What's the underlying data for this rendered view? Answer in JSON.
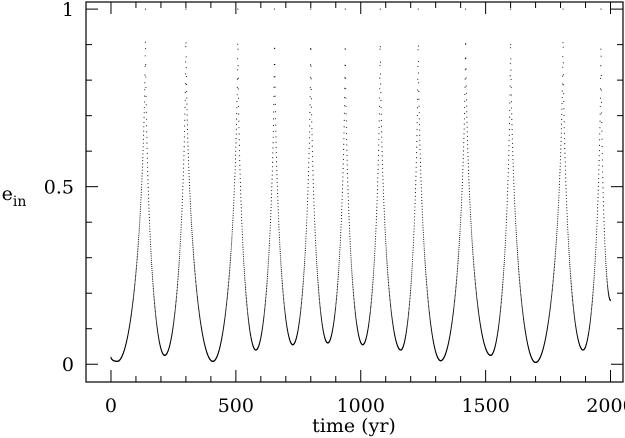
{
  "chart_data": {
    "type": "scatter",
    "title": "",
    "xlabel": "time (yr)",
    "ylabel_main": "e",
    "ylabel_sub": "in",
    "xlim": [
      -100,
      2050
    ],
    "ylim": [
      -0.05,
      1.02
    ],
    "x_major_ticks": [
      0,
      500,
      1000,
      1500,
      2000
    ],
    "x_minor_step": 100,
    "x_tick_labels": [
      "0",
      "500",
      "1000",
      "1500",
      "2000"
    ],
    "y_major_ticks": [
      0,
      0.5,
      1
    ],
    "y_minor_step": 0.1,
    "y_tick_labels": [
      "0",
      "0.5",
      "1"
    ],
    "grid": false,
    "legend": false,
    "series": [
      {
        "start": {
          "t": 0,
          "e": 0.02
        },
        "cycles": [
          {
            "t_min": 25,
            "e_min": 0.008,
            "t_peak": 138,
            "e_peak": 1.0
          },
          {
            "t_min": 215,
            "e_min": 0.025,
            "t_peak": 300,
            "e_peak": 1.0
          },
          {
            "t_min": 408,
            "e_min": 0.008,
            "t_peak": 508,
            "e_peak": 1.0
          },
          {
            "t_min": 580,
            "e_min": 0.04,
            "t_peak": 655,
            "e_peak": 1.0
          },
          {
            "t_min": 728,
            "e_min": 0.055,
            "t_peak": 800,
            "e_peak": 1.0
          },
          {
            "t_min": 868,
            "e_min": 0.06,
            "t_peak": 938,
            "e_peak": 1.0
          },
          {
            "t_min": 1008,
            "e_min": 0.055,
            "t_peak": 1078,
            "e_peak": 1.0
          },
          {
            "t_min": 1160,
            "e_min": 0.04,
            "t_peak": 1230,
            "e_peak": 1.0
          },
          {
            "t_min": 1320,
            "e_min": 0.01,
            "t_peak": 1420,
            "e_peak": 1.0
          },
          {
            "t_min": 1520,
            "e_min": 0.025,
            "t_peak": 1600,
            "e_peak": 1.0
          },
          {
            "t_min": 1700,
            "e_min": 0.005,
            "t_peak": 1810,
            "e_peak": 1.0
          },
          {
            "t_min": 1890,
            "e_min": 0.04,
            "t_peak": 1962,
            "e_peak": 1.0
          }
        ],
        "end": {
          "t": 2000,
          "e": 0.18
        }
      }
    ]
  }
}
